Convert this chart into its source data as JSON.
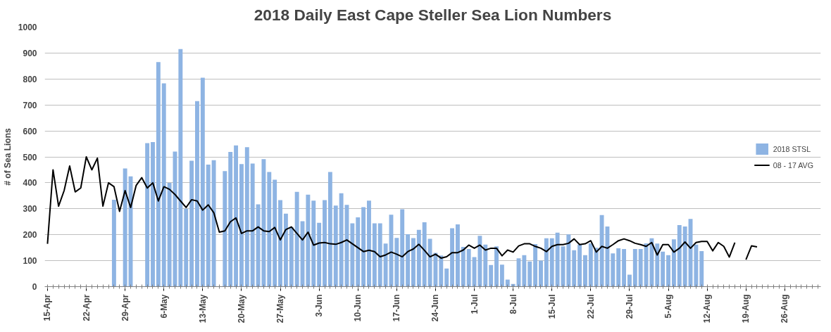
{
  "chart_data": {
    "type": "bar",
    "title": "2018 Daily East Cape Steller Sea Lion Numbers",
    "ylabel": "# of Sea Lions",
    "x": [
      "2018-04-15",
      "2018-04-16",
      "2018-04-17",
      "2018-04-18",
      "2018-04-19",
      "2018-04-20",
      "2018-04-21",
      "2018-04-22",
      "2018-04-23",
      "2018-04-24",
      "2018-04-25",
      "2018-04-26",
      "2018-04-27",
      "2018-04-28",
      "2018-04-29",
      "2018-04-30",
      "2018-05-01",
      "2018-05-02",
      "2018-05-03",
      "2018-05-04",
      "2018-05-05",
      "2018-05-06",
      "2018-05-07",
      "2018-05-08",
      "2018-05-09",
      "2018-05-10",
      "2018-05-11",
      "2018-05-12",
      "2018-05-13",
      "2018-05-14",
      "2018-05-15",
      "2018-05-16",
      "2018-05-17",
      "2018-05-18",
      "2018-05-19",
      "2018-05-20",
      "2018-05-21",
      "2018-05-22",
      "2018-05-23",
      "2018-05-24",
      "2018-05-25",
      "2018-05-26",
      "2018-05-27",
      "2018-05-28",
      "2018-05-29",
      "2018-05-30",
      "2018-05-31",
      "2018-06-01",
      "2018-06-02",
      "2018-06-03",
      "2018-06-04",
      "2018-06-05",
      "2018-06-06",
      "2018-06-07",
      "2018-06-08",
      "2018-06-09",
      "2018-06-10",
      "2018-06-11",
      "2018-06-12",
      "2018-06-13",
      "2018-06-14",
      "2018-06-15",
      "2018-06-16",
      "2018-06-17",
      "2018-06-18",
      "2018-06-19",
      "2018-06-20",
      "2018-06-21",
      "2018-06-22",
      "2018-06-23",
      "2018-06-24",
      "2018-06-25",
      "2018-06-26",
      "2018-06-27",
      "2018-06-28",
      "2018-06-29",
      "2018-06-30",
      "2018-07-01",
      "2018-07-02",
      "2018-07-03",
      "2018-07-04",
      "2018-07-05",
      "2018-07-06",
      "2018-07-07",
      "2018-07-08",
      "2018-07-09",
      "2018-07-10",
      "2018-07-11",
      "2018-07-12",
      "2018-07-13",
      "2018-07-14",
      "2018-07-15",
      "2018-07-16",
      "2018-07-17",
      "2018-07-18",
      "2018-07-19",
      "2018-07-20",
      "2018-07-21",
      "2018-07-22",
      "2018-07-23",
      "2018-07-24",
      "2018-07-25",
      "2018-07-26",
      "2018-07-27",
      "2018-07-28",
      "2018-07-29",
      "2018-07-30",
      "2018-07-31",
      "2018-08-01",
      "2018-08-02",
      "2018-08-03",
      "2018-08-04",
      "2018-08-05",
      "2018-08-06",
      "2018-08-07",
      "2018-08-08",
      "2018-08-09",
      "2018-08-10",
      "2018-08-11",
      "2018-08-12",
      "2018-08-13",
      "2018-08-14",
      "2018-08-15",
      "2018-08-16",
      "2018-08-17",
      "2018-08-18",
      "2018-08-19",
      "2018-08-20",
      "2018-08-21"
    ],
    "xlim": [
      "2018-04-14T12:00",
      "2018-09-01T12:00"
    ],
    "xticks": [
      {
        "value": "2018-04-15",
        "label": "15-Apr"
      },
      {
        "value": "2018-04-22",
        "label": "22-Apr"
      },
      {
        "value": "2018-04-29",
        "label": "29-Apr"
      },
      {
        "value": "2018-05-06",
        "label": "6-May"
      },
      {
        "value": "2018-05-13",
        "label": "13-May"
      },
      {
        "value": "2018-05-20",
        "label": "20-May"
      },
      {
        "value": "2018-05-27",
        "label": "27-May"
      },
      {
        "value": "2018-06-03",
        "label": "3-Jun"
      },
      {
        "value": "2018-06-10",
        "label": "10-Jun"
      },
      {
        "value": "2018-06-17",
        "label": "17-Jun"
      },
      {
        "value": "2018-06-24",
        "label": "24-Jun"
      },
      {
        "value": "2018-07-01",
        "label": "1-Jul"
      },
      {
        "value": "2018-07-08",
        "label": "8-Jul"
      },
      {
        "value": "2018-07-15",
        "label": "15-Jul"
      },
      {
        "value": "2018-07-22",
        "label": "22-Jul"
      },
      {
        "value": "2018-07-29",
        "label": "29-Jul"
      },
      {
        "value": "2018-08-05",
        "label": "5-Aug"
      },
      {
        "value": "2018-08-12",
        "label": "12-Aug"
      },
      {
        "value": "2018-08-19",
        "label": "19-Aug"
      },
      {
        "value": "2018-08-26",
        "label": "26-Aug"
      }
    ],
    "ylim": [
      0,
      1000
    ],
    "yticks": [
      0,
      100,
      200,
      300,
      400,
      500,
      600,
      700,
      800,
      900,
      1000
    ],
    "grid": "y",
    "legend": "right",
    "series": [
      {
        "name": "2018 STSL",
        "color": "#8eb4e3",
        "values": [
          null,
          null,
          null,
          null,
          null,
          null,
          null,
          null,
          null,
          null,
          null,
          null,
          335,
          null,
          455,
          425,
          null,
          null,
          553,
          557,
          865,
          783,
          400,
          520,
          915,
          300,
          485,
          715,
          805,
          470,
          487,
          null,
          445,
          519,
          544,
          472,
          537,
          474,
          317,
          491,
          442,
          412,
          333,
          281,
          230,
          365,
          252,
          354,
          331,
          246,
          333,
          442,
          312,
          360,
          315,
          244,
          267,
          306,
          331,
          244,
          244,
          166,
          277,
          188,
          298,
          202,
          187,
          219,
          248,
          184,
          130,
          120,
          70,
          225,
          240,
          153,
          145,
          114,
          196,
          162,
          83,
          155,
          85,
          27,
          10,
          109,
          121,
          97,
          164,
          100,
          186,
          186,
          208,
          155,
          201,
          140,
          162,
          121,
          167,
          150,
          276,
          232,
          128,
          148,
          145,
          46,
          145,
          145,
          167,
          186,
          166,
          135,
          121,
          182,
          237,
          232,
          261,
          162,
          137,
          null,
          null,
          null,
          null,
          null,
          null,
          null,
          null,
          null,
          null
        ]
      },
      {
        "name": "08 - 17 AVG",
        "type": "line",
        "color": "#000000",
        "values": [
          165,
          450,
          310,
          370,
          465,
          365,
          380,
          500,
          450,
          495,
          310,
          400,
          385,
          290,
          370,
          305,
          390,
          420,
          380,
          400,
          330,
          385,
          375,
          355,
          330,
          305,
          335,
          330,
          295,
          315,
          285,
          210,
          215,
          250,
          265,
          205,
          215,
          215,
          230,
          215,
          212,
          228,
          180,
          220,
          230,
          205,
          180,
          210,
          160,
          168,
          170,
          165,
          163,
          170,
          180,
          165,
          150,
          135,
          140,
          135,
          115,
          122,
          133,
          125,
          115,
          135,
          145,
          163,
          140,
          115,
          125,
          110,
          115,
          131,
          131,
          141,
          160,
          148,
          160,
          141,
          148,
          148,
          119,
          141,
          133,
          157,
          165,
          165,
          155,
          148,
          135,
          155,
          162,
          162,
          167,
          184,
          162,
          165,
          177,
          133,
          155,
          148,
          162,
          177,
          184,
          177,
          167,
          162,
          155,
          170,
          122,
          162,
          162,
          133,
          148,
          172,
          148,
          170,
          174,
          174,
          138,
          170,
          155,
          114,
          170,
          null,
          104,
          157,
          153
        ]
      }
    ]
  }
}
